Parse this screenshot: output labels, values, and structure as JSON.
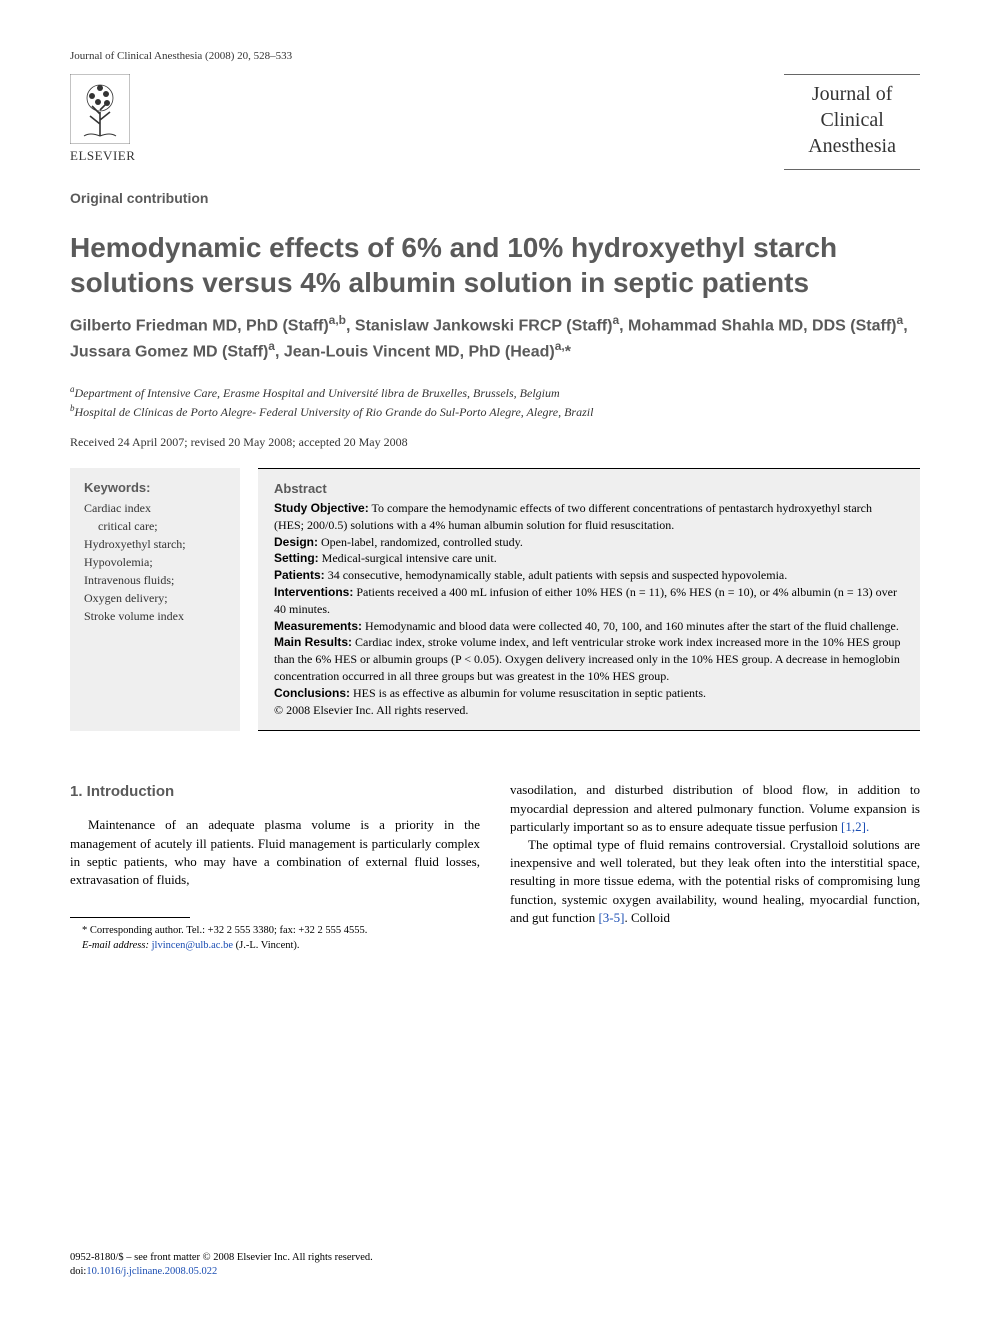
{
  "header": {
    "citation": "Journal of Clinical Anesthesia (2008) 20, 528–533"
  },
  "publisher": {
    "name": "ELSEVIER",
    "tree_fill": "#333333"
  },
  "journal_box": {
    "line1": "Journal of",
    "line2": "Clinical",
    "line3": "Anesthesia"
  },
  "article_type": "Original contribution",
  "title": "Hemodynamic effects of 6% and 10% hydroxyethyl starch solutions versus 4% albumin solution in septic patients",
  "authors_html": "Gilberto Friedman MD, PhD (Staff)<sup>a,b</sup>, Stanislaw Jankowski FRCP (Staff)<sup>a</sup>, Mohammad Shahla MD, DDS (Staff)<sup>a</sup>, Jussara Gomez MD (Staff)<sup>a</sup>, Jean-Louis Vincent MD, PhD (Head)<sup>a,</sup>*",
  "affiliations": {
    "a": "Department of Intensive Care, Erasme Hospital and Université libra de Bruxelles, Brussels, Belgium",
    "b": "Hospital de Clínicas de Porto Alegre- Federal University of Rio Grande do Sul-Porto Alegre, Alegre, Brazil"
  },
  "history": "Received 24 April 2007; revised 20 May 2008; accepted 20 May 2008",
  "keywords": {
    "heading": "Keywords:",
    "items": [
      "Cardiac index",
      "critical care;",
      "Hydroxyethyl starch;",
      "Hypovolemia;",
      "Intravenous fluids;",
      "Oxygen delivery;",
      "Stroke volume index"
    ]
  },
  "abstract": {
    "heading": "Abstract",
    "sections": [
      {
        "label": "Study Objective:",
        "text": " To compare the hemodynamic effects of two different concentrations of pentastarch hydroxyethyl starch (HES; 200/0.5) solutions with a 4% human albumin solution for fluid resuscitation."
      },
      {
        "label": "Design:",
        "text": " Open-label, randomized, controlled study."
      },
      {
        "label": "Setting:",
        "text": " Medical-surgical intensive care unit."
      },
      {
        "label": "Patients:",
        "text": " 34 consecutive, hemodynamically stable, adult patients with sepsis and suspected hypovolemia."
      },
      {
        "label": "Interventions:",
        "text": " Patients received a 400 mL infusion of either 10% HES (n = 11), 6% HES (n = 10), or 4% albumin (n = 13) over 40 minutes."
      },
      {
        "label": "Measurements:",
        "text": " Hemodynamic and blood data were collected 40, 70, 100, and 160 minutes after the start of the fluid challenge."
      },
      {
        "label": "Main Results:",
        "text": " Cardiac index, stroke volume index, and left ventricular stroke work index increased more in the 10% HES group than the 6% HES or albumin groups (P < 0.05). Oxygen delivery increased only in the 10% HES group. A decrease in hemoglobin concentration occurred in all three groups but was greatest in the 10% HES group."
      },
      {
        "label": "Conclusions:",
        "text": " HES is as effective as albumin for volume resuscitation in septic patients."
      }
    ],
    "copyright": "© 2008 Elsevier Inc. All rights reserved."
  },
  "introduction": {
    "heading": "1. Introduction",
    "col1_p1": "Maintenance of an adequate plasma volume is a priority in the management of acutely ill patients. Fluid management is particularly complex in septic patients, who may have a combination of external fluid losses, extravasation of fluids,",
    "col2_p1": "vasodilation, and disturbed distribution of blood flow, in addition to myocardial depression and altered pulmonary function. Volume expansion is particularly important so as to ensure adequate tissue perfusion ",
    "col2_ref1": "[1,2].",
    "col2_p2": "The optimal type of fluid remains controversial. Crystalloid solutions are inexpensive and well tolerated, but they leak often into the interstitial space, resulting in more tissue edema, with the potential risks of compromising lung function, systemic oxygen availability, wound healing, myocardial function, and gut function ",
    "col2_ref2": "[3-5]",
    "col2_p2_tail": ". Colloid"
  },
  "footnote": {
    "star": "* Corresponding author. Tel.: +32 2 555 3380; fax: +32 2 555 4555.",
    "email_label": "E-mail address: ",
    "email": "jlvincen@ulb.ac.be",
    "email_tail": " (J.-L. Vincent)."
  },
  "copyright_footer": {
    "line1": "0952-8180/$ – see front matter © 2008 Elsevier Inc. All rights reserved.",
    "doi_label": "doi:",
    "doi": "10.1016/j.jclinane.2008.05.022"
  },
  "colors": {
    "background": "#ffffff",
    "text": "#000000",
    "heading_gray": "#5a5a5a",
    "box_bg": "#efefef",
    "link": "#1a4db3",
    "rule": "#000000"
  }
}
